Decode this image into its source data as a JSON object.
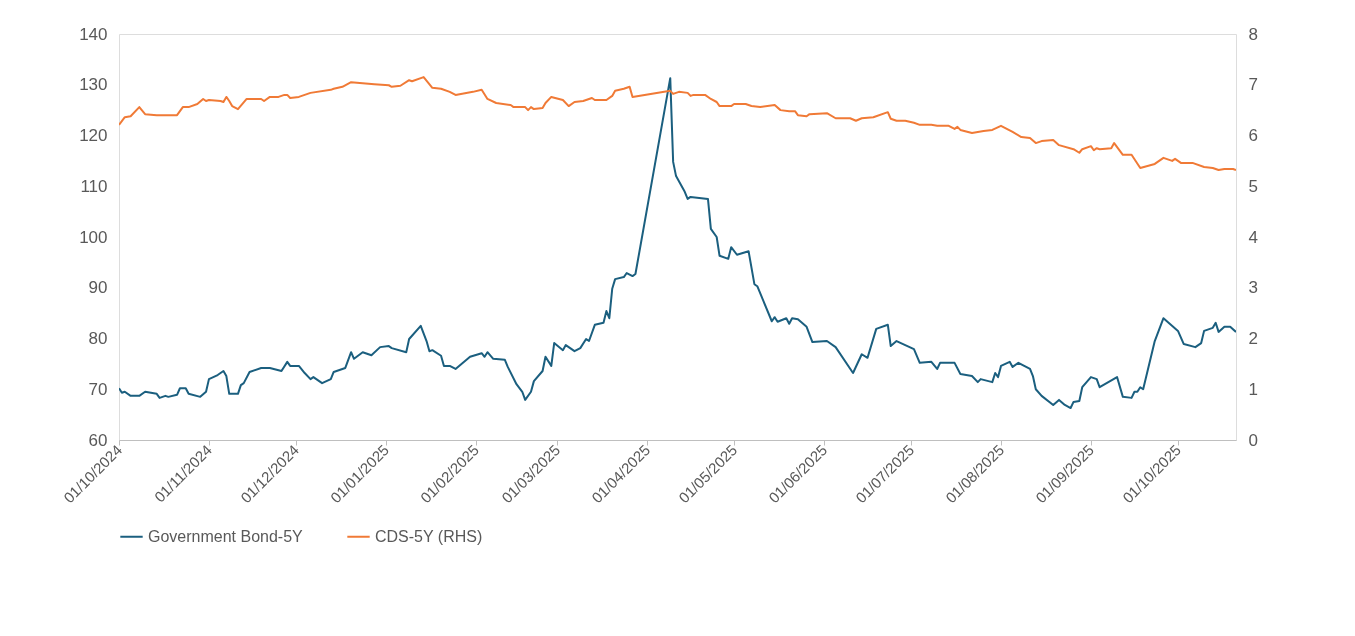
{
  "chart_data": {
    "type": "line",
    "legend": "bottom",
    "grid": false,
    "line_style": "solid",
    "marker": "none",
    "xlim": [
      "2024-10-01",
      "2025-10-21"
    ],
    "xticks": [
      {
        "value": "2024-10-01",
        "label": "01/10/2024"
      },
      {
        "value": "2024-11-01",
        "label": "01/11/2024"
      },
      {
        "value": "2024-12-01",
        "label": "01/12/2024"
      },
      {
        "value": "2025-01-01",
        "label": "01/01/2025"
      },
      {
        "value": "2025-02-01",
        "label": "01/02/2025"
      },
      {
        "value": "2025-03-01",
        "label": "01/03/2025"
      },
      {
        "value": "2025-04-01",
        "label": "01/04/2025"
      },
      {
        "value": "2025-05-01",
        "label": "01/05/2025"
      },
      {
        "value": "2025-06-01",
        "label": "01/06/2025"
      },
      {
        "value": "2025-07-01",
        "label": "01/07/2025"
      },
      {
        "value": "2025-08-01",
        "label": "01/08/2025"
      },
      {
        "value": "2025-09-01",
        "label": "01/09/2025"
      },
      {
        "value": "2025-10-01",
        "label": "01/10/2025"
      }
    ],
    "ylim": [
      60,
      140
    ],
    "yticks": [
      60,
      70,
      80,
      90,
      100,
      110,
      120,
      130,
      140
    ],
    "y2lim": [
      0,
      8
    ],
    "y2ticks": [
      0,
      1,
      2,
      3,
      4,
      5,
      6,
      7,
      8
    ],
    "series": [
      {
        "name": "Government Bond-5Y",
        "color": "#1b5f7f",
        "x": [
          "2024-10-01",
          "2024-10-02",
          "2024-10-03",
          "2024-10-05",
          "2024-10-08",
          "2024-10-10",
          "2024-10-14",
          "2024-10-15",
          "2024-10-17",
          "2024-10-18",
          "2024-10-21",
          "2024-10-22",
          "2024-10-24",
          "2024-10-25",
          "2024-10-29",
          "2024-10-31",
          "2024-11-01",
          "2024-11-04",
          "2024-11-06",
          "2024-11-07",
          "2024-11-08",
          "2024-11-11",
          "2024-11-12",
          "2024-11-13",
          "2024-11-15",
          "2024-11-19",
          "2024-11-22",
          "2024-11-26",
          "2024-11-28",
          "2024-11-29",
          "2024-12-02",
          "2024-12-04",
          "2024-12-06",
          "2024-12-07",
          "2024-12-10",
          "2024-12-13",
          "2024-12-14",
          "2024-12-18",
          "2024-12-20",
          "2024-12-21",
          "2024-12-24",
          "2024-12-27",
          "2024-12-30",
          "2025-01-02",
          "2025-01-03",
          "2025-01-08",
          "2025-01-09",
          "2025-01-13",
          "2025-01-15",
          "2025-01-16",
          "2025-01-17",
          "2025-01-20",
          "2025-01-21",
          "2025-01-23",
          "2025-01-25",
          "2025-01-30",
          "2025-02-03",
          "2025-02-04",
          "2025-02-05",
          "2025-02-07",
          "2025-02-11",
          "2025-02-12",
          "2025-02-15",
          "2025-02-17",
          "2025-02-18",
          "2025-02-20",
          "2025-02-21",
          "2025-02-24",
          "2025-02-25",
          "2025-02-27",
          "2025-02-28",
          "2025-03-03",
          "2025-03-04",
          "2025-03-07",
          "2025-03-09",
          "2025-03-11",
          "2025-03-12",
          "2025-03-14",
          "2025-03-17",
          "2025-03-18",
          "2025-03-19",
          "2025-03-20",
          "2025-03-21",
          "2025-03-24",
          "2025-03-25",
          "2025-03-27",
          "2025-03-28",
          "2025-04-09",
          "2025-04-10",
          "2025-04-11",
          "2025-04-14",
          "2025-04-15",
          "2025-04-16",
          "2025-04-22",
          "2025-04-23",
          "2025-04-25",
          "2025-04-26",
          "2025-04-29",
          "2025-04-30",
          "2025-05-02",
          "2025-05-06",
          "2025-05-08",
          "2025-05-09",
          "2025-05-14",
          "2025-05-15",
          "2025-05-16",
          "2025-05-19",
          "2025-05-20",
          "2025-05-21",
          "2025-05-23",
          "2025-05-26",
          "2025-05-28",
          "2025-06-02",
          "2025-06-05",
          "2025-06-11",
          "2025-06-14",
          "2025-06-16",
          "2025-06-19",
          "2025-06-23",
          "2025-06-24",
          "2025-06-26",
          "2025-07-02",
          "2025-07-04",
          "2025-07-08",
          "2025-07-10",
          "2025-07-11",
          "2025-07-16",
          "2025-07-18",
          "2025-07-22",
          "2025-07-24",
          "2025-07-25",
          "2025-07-29",
          "2025-07-30",
          "2025-07-31",
          "2025-08-01",
          "2025-08-04",
          "2025-08-05",
          "2025-08-07",
          "2025-08-09",
          "2025-08-11",
          "2025-08-12",
          "2025-08-13",
          "2025-08-15",
          "2025-08-19",
          "2025-08-21",
          "2025-08-23",
          "2025-08-25",
          "2025-08-26",
          "2025-08-28",
          "2025-08-29",
          "2025-09-01",
          "2025-09-03",
          "2025-09-04",
          "2025-09-10",
          "2025-09-12",
          "2025-09-15",
          "2025-09-16",
          "2025-09-17",
          "2025-09-18",
          "2025-09-19",
          "2025-09-23",
          "2025-09-26",
          "2025-10-01",
          "2025-10-03",
          "2025-10-07",
          "2025-10-09",
          "2025-10-10",
          "2025-10-13",
          "2025-10-14",
          "2025-10-15",
          "2025-10-17",
          "2025-10-19",
          "2025-10-21"
        ],
        "values": [
          70.2,
          69.3,
          69.5,
          68.7,
          68.7,
          69.5,
          69.1,
          68.3,
          68.7,
          68.5,
          68.9,
          70.2,
          70.2,
          69.1,
          68.5,
          69.5,
          72.0,
          72.8,
          73.6,
          72.6,
          69.1,
          69.1,
          70.8,
          71.2,
          73.4,
          74.2,
          74.2,
          73.6,
          75.4,
          74.6,
          74.6,
          73.2,
          72.0,
          72.4,
          71.2,
          72.0,
          73.4,
          74.2,
          77.3,
          76.0,
          77.3,
          76.7,
          78.3,
          78.5,
          78.1,
          77.3,
          79.9,
          82.5,
          79.5,
          77.5,
          77.7,
          76.6,
          74.6,
          74.6,
          74.0,
          76.4,
          77.1,
          76.4,
          77.3,
          76.0,
          75.8,
          74.4,
          71.0,
          69.5,
          67.9,
          69.5,
          71.6,
          73.6,
          76.4,
          74.6,
          79.1,
          77.7,
          78.7,
          77.5,
          78.1,
          79.9,
          79.5,
          82.7,
          83.1,
          85.4,
          84.0,
          89.8,
          91.7,
          92.1,
          92.9,
          92.3,
          92.7,
          131.3,
          114.8,
          112.0,
          108.9,
          107.5,
          107.9,
          107.5,
          101.6,
          100.0,
          96.3,
          95.7,
          98.0,
          96.5,
          97.2,
          90.7,
          90.3,
          83.4,
          84.2,
          83.3,
          84.0,
          82.9,
          84.0,
          83.8,
          82.3,
          79.3,
          79.5,
          78.3,
          73.2,
          76.9,
          76.2,
          81.9,
          82.7,
          78.5,
          79.5,
          77.9,
          75.2,
          75.4,
          74.0,
          75.2,
          75.2,
          73.0,
          72.6,
          71.4,
          72.0,
          71.4,
          73.2,
          72.4,
          74.6,
          75.4,
          74.4,
          75.2,
          74.6,
          74.0,
          72.6,
          70.0,
          68.7,
          66.9,
          67.9,
          66.9,
          66.3,
          67.5,
          67.7,
          70.4,
          72.4,
          72.0,
          70.4,
          72.4,
          68.5,
          68.3,
          69.5,
          69.5,
          70.4,
          70.0,
          79.5,
          84.0,
          81.5,
          78.9,
          78.3,
          79.1,
          81.5,
          82.1,
          83.1,
          81.3,
          82.3,
          82.3,
          81.3
        ]
      },
      {
        "name": "CDS-5Y (RHS)",
        "color": "#f07a36",
        "axis": "y2",
        "x": [
          "2024-10-01",
          "2024-10-03",
          "2024-10-05",
          "2024-10-08",
          "2024-10-10",
          "2024-10-14",
          "2024-10-21",
          "2024-10-23",
          "2024-10-25",
          "2024-10-28",
          "2024-10-30",
          "2024-10-31",
          "2024-11-01",
          "2024-11-05",
          "2024-11-06",
          "2024-11-07",
          "2024-11-08",
          "2024-11-09",
          "2024-11-11",
          "2024-11-14",
          "2024-11-19",
          "2024-11-20",
          "2024-11-22",
          "2024-11-25",
          "2024-11-27",
          "2024-11-28",
          "2024-11-29",
          "2024-12-02",
          "2024-12-06",
          "2024-12-13",
          "2024-12-14",
          "2024-12-17",
          "2024-12-20",
          "2024-12-28",
          "2025-01-02",
          "2025-01-03",
          "2025-01-06",
          "2025-01-09",
          "2025-01-10",
          "2025-01-14",
          "2025-01-17",
          "2025-01-20",
          "2025-01-23",
          "2025-01-25",
          "2025-01-31",
          "2025-02-03",
          "2025-02-05",
          "2025-02-08",
          "2025-02-13",
          "2025-02-14",
          "2025-02-18",
          "2025-02-19",
          "2025-02-20",
          "2025-02-21",
          "2025-02-24",
          "2025-02-25",
          "2025-02-27",
          "2025-03-03",
          "2025-03-05",
          "2025-03-07",
          "2025-03-10",
          "2025-03-13",
          "2025-03-14",
          "2025-03-18",
          "2025-03-20",
          "2025-03-21",
          "2025-03-24",
          "2025-03-26",
          "2025-03-27",
          "2025-04-09",
          "2025-04-10",
          "2025-04-12",
          "2025-04-15",
          "2025-04-16",
          "2025-04-17",
          "2025-04-21",
          "2025-04-23",
          "2025-04-25",
          "2025-04-26",
          "2025-04-30",
          "2025-05-01",
          "2025-05-05",
          "2025-05-07",
          "2025-05-10",
          "2025-05-15",
          "2025-05-17",
          "2025-05-20",
          "2025-05-22",
          "2025-05-23",
          "2025-05-26",
          "2025-05-27",
          "2025-06-02",
          "2025-06-05",
          "2025-06-10",
          "2025-06-12",
          "2025-06-14",
          "2025-06-18",
          "2025-06-23",
          "2025-06-24",
          "2025-06-26",
          "2025-06-29",
          "2025-07-02",
          "2025-07-04",
          "2025-07-08",
          "2025-07-10",
          "2025-07-14",
          "2025-07-16",
          "2025-07-17",
          "2025-07-18",
          "2025-07-22",
          "2025-07-26",
          "2025-07-29",
          "2025-08-01",
          "2025-08-05",
          "2025-08-08",
          "2025-08-11",
          "2025-08-13",
          "2025-08-15",
          "2025-08-19",
          "2025-08-21",
          "2025-08-26",
          "2025-08-28",
          "2025-08-29",
          "2025-09-01",
          "2025-09-02",
          "2025-09-03",
          "2025-09-04",
          "2025-09-08",
          "2025-09-09",
          "2025-09-12",
          "2025-09-15",
          "2025-09-18",
          "2025-09-23",
          "2025-09-26",
          "2025-09-29",
          "2025-09-30",
          "2025-10-02",
          "2025-10-06",
          "2025-10-10",
          "2025-10-13",
          "2025-10-15",
          "2025-10-17",
          "2025-10-20",
          "2025-10-21"
        ],
        "values": [
          6.21,
          6.36,
          6.38,
          6.56,
          6.42,
          6.4,
          6.4,
          6.56,
          6.56,
          6.62,
          6.72,
          6.68,
          6.7,
          6.68,
          6.66,
          6.76,
          6.68,
          6.58,
          6.52,
          6.72,
          6.72,
          6.68,
          6.76,
          6.76,
          6.8,
          6.8,
          6.74,
          6.76,
          6.84,
          6.9,
          6.92,
          6.96,
          7.05,
          7.01,
          6.99,
          6.96,
          6.98,
          7.09,
          7.07,
          7.15,
          6.94,
          6.92,
          6.86,
          6.8,
          6.86,
          6.9,
          6.72,
          6.64,
          6.6,
          6.56,
          6.56,
          6.5,
          6.56,
          6.52,
          6.54,
          6.64,
          6.76,
          6.7,
          6.58,
          6.66,
          6.68,
          6.74,
          6.7,
          6.7,
          6.78,
          6.88,
          6.92,
          6.96,
          6.76,
          6.88,
          6.82,
          6.86,
          6.84,
          6.78,
          6.8,
          6.8,
          6.72,
          6.66,
          6.58,
          6.58,
          6.62,
          6.62,
          6.58,
          6.56,
          6.6,
          6.5,
          6.48,
          6.48,
          6.4,
          6.38,
          6.42,
          6.44,
          6.34,
          6.34,
          6.29,
          6.34,
          6.36,
          6.46,
          6.33,
          6.29,
          6.29,
          6.25,
          6.21,
          6.21,
          6.19,
          6.19,
          6.13,
          6.17,
          6.11,
          6.05,
          6.09,
          6.11,
          6.19,
          6.07,
          5.97,
          5.95,
          5.85,
          5.89,
          5.91,
          5.81,
          5.73,
          5.66,
          5.73,
          5.79,
          5.71,
          5.75,
          5.73,
          5.75,
          5.85,
          5.62,
          5.62,
          5.36,
          5.44,
          5.56,
          5.5,
          5.54,
          5.46,
          5.46,
          5.38,
          5.36,
          5.32,
          5.34,
          5.34,
          5.32
        ]
      }
    ]
  }
}
